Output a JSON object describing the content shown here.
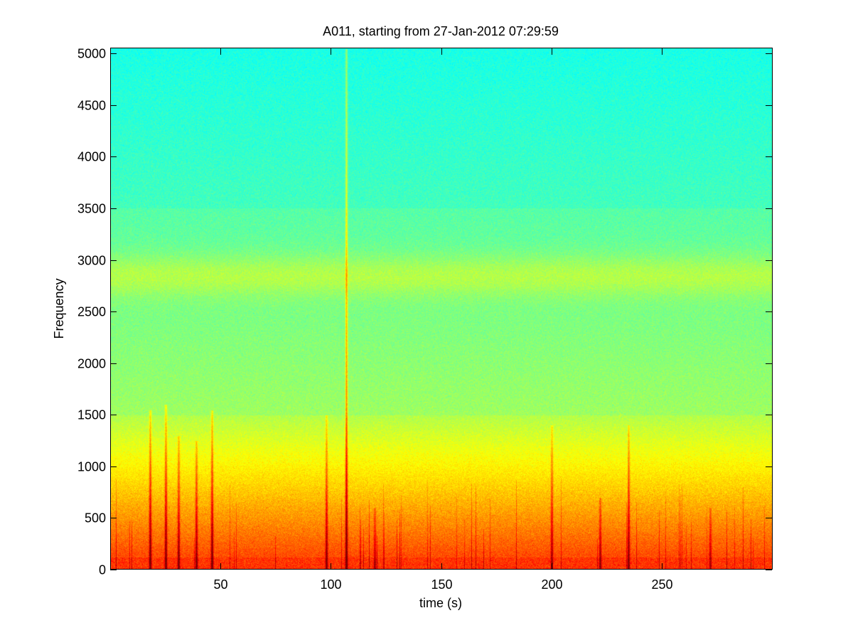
{
  "chart_data": {
    "type": "heatmap",
    "subtype": "spectrogram",
    "title": "A011, starting from 27-Jan-2012 07:29:59",
    "xlabel": "time (s)",
    "ylabel": "Frequency",
    "xlim": [
      0,
      300
    ],
    "ylim": [
      0,
      5050
    ],
    "xticks": [
      50,
      100,
      150,
      200,
      250
    ],
    "yticks": [
      0,
      500,
      1000,
      1500,
      2000,
      2500,
      3000,
      3500,
      4000,
      4500,
      5000
    ],
    "colormap": "jet",
    "grid": false,
    "legend": "none",
    "intensity_profile": [
      {
        "freq_low": 0,
        "freq_high": 150,
        "level": "red"
      },
      {
        "freq_low": 150,
        "freq_high": 800,
        "level": "yellow"
      },
      {
        "freq_low": 800,
        "freq_high": 1500,
        "level": "yellow-green"
      },
      {
        "freq_low": 1500,
        "freq_high": 3500,
        "level": "green-cyan"
      },
      {
        "freq_low": 2600,
        "freq_high": 3100,
        "level": "yellow-green band"
      },
      {
        "freq_low": 3500,
        "freq_high": 5050,
        "level": "cyan"
      }
    ],
    "vertical_streaks": [
      {
        "time": 18,
        "top_freq": 1550,
        "strength": 0.9
      },
      {
        "time": 25,
        "top_freq": 1600,
        "strength": 0.9
      },
      {
        "time": 31,
        "top_freq": 1300,
        "strength": 0.8
      },
      {
        "time": 39,
        "top_freq": 1250,
        "strength": 0.8
      },
      {
        "time": 46,
        "top_freq": 1550,
        "strength": 0.9
      },
      {
        "time": 98,
        "top_freq": 1500,
        "strength": 0.8
      },
      {
        "time": 107,
        "top_freq": 5050,
        "strength": 1.0
      },
      {
        "time": 120,
        "top_freq": 600,
        "strength": 0.6
      },
      {
        "time": 200,
        "top_freq": 1400,
        "strength": 0.7
      },
      {
        "time": 222,
        "top_freq": 700,
        "strength": 0.7
      },
      {
        "time": 235,
        "top_freq": 1400,
        "strength": 0.8
      },
      {
        "time": 272,
        "top_freq": 600,
        "strength": 0.6
      }
    ]
  }
}
